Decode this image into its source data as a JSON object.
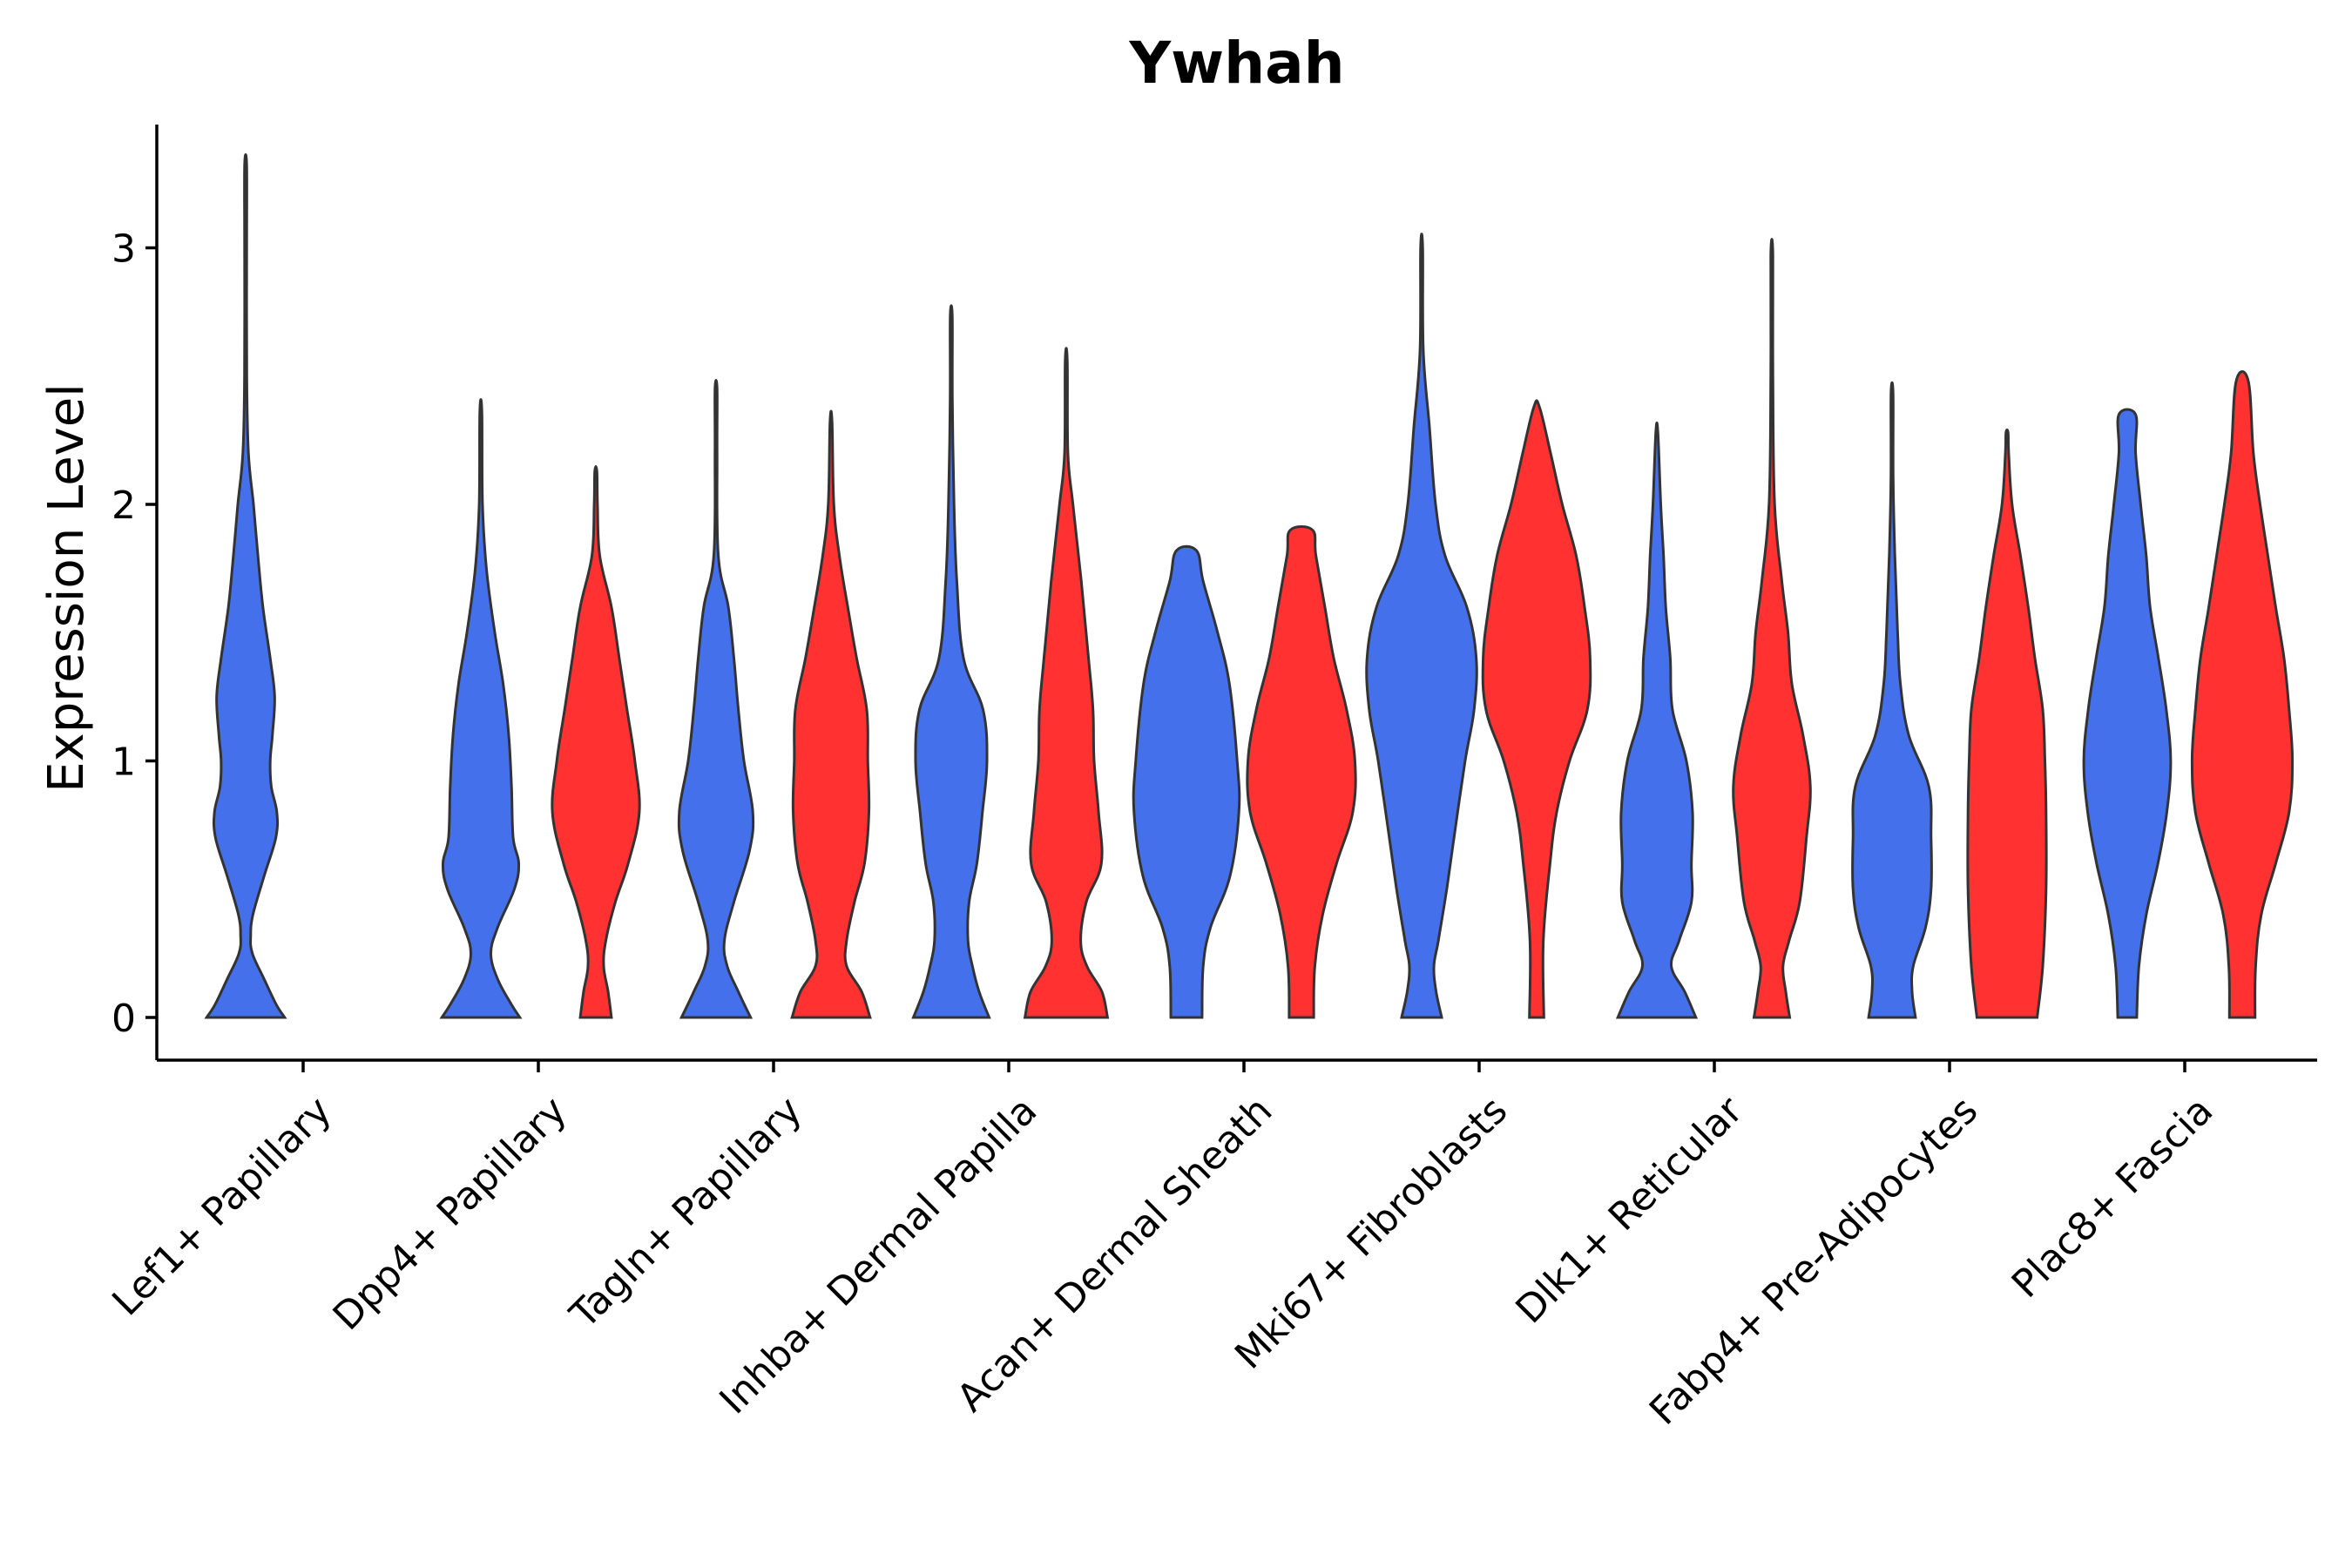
{
  "chart_data": {
    "type": "violin",
    "title": "Ywhah",
    "xlabel": "",
    "ylabel": "Expression Level",
    "ylim": [
      -0.17,
      3.5
    ],
    "yticks": [
      0,
      1,
      2,
      3
    ],
    "colors": {
      "group_a": "#4470EB",
      "group_b": "#FF3131"
    },
    "categories": [
      "Lef1+ Papillary",
      "Dpp4+ Papillary",
      "Tagln+ Papillary",
      "Inhba+ Dermal Papilla",
      "Acan+ Dermal Sheath",
      "Mki67+ Fibroblasts",
      "Dlk1+ Reticular",
      "Fabp4+ Pre-Adipocytes",
      "Plac8+ Fascia"
    ],
    "violins": [
      {
        "category": "Lef1+ Papillary",
        "group": "group_a",
        "max": 3.32,
        "profile": [
          [
            0,
            0.7
          ],
          [
            0.05,
            0.55
          ],
          [
            0.15,
            0.33
          ],
          [
            0.25,
            0.12
          ],
          [
            0.32,
            0.09
          ],
          [
            0.4,
            0.13
          ],
          [
            0.55,
            0.33
          ],
          [
            0.7,
            0.54
          ],
          [
            0.8,
            0.56
          ],
          [
            0.9,
            0.46
          ],
          [
            1.0,
            0.44
          ],
          [
            1.1,
            0.48
          ],
          [
            1.25,
            0.52
          ],
          [
            1.4,
            0.44
          ],
          [
            1.6,
            0.31
          ],
          [
            1.8,
            0.22
          ],
          [
            2.0,
            0.14
          ],
          [
            2.2,
            0.05
          ],
          [
            2.5,
            0.02
          ],
          [
            3.0,
            0.01
          ],
          [
            3.32,
            0.0
          ]
        ]
      },
      {
        "category": "Dpp4+ Papillary",
        "group": "group_a",
        "max": 2.36,
        "profile": [
          [
            0,
            0.7
          ],
          [
            0.05,
            0.55
          ],
          [
            0.15,
            0.3
          ],
          [
            0.25,
            0.18
          ],
          [
            0.35,
            0.3
          ],
          [
            0.5,
            0.6
          ],
          [
            0.6,
            0.68
          ],
          [
            0.7,
            0.58
          ],
          [
            0.9,
            0.55
          ],
          [
            1.1,
            0.5
          ],
          [
            1.3,
            0.4
          ],
          [
            1.5,
            0.25
          ],
          [
            1.75,
            0.1
          ],
          [
            2.0,
            0.03
          ],
          [
            2.36,
            0.0
          ]
        ]
      },
      {
        "category": "Dpp4+ Papillary",
        "group": "group_b",
        "max": 2.13,
        "profile": [
          [
            0,
            0.28
          ],
          [
            0.1,
            0.22
          ],
          [
            0.2,
            0.14
          ],
          [
            0.3,
            0.18
          ],
          [
            0.45,
            0.35
          ],
          [
            0.6,
            0.58
          ],
          [
            0.8,
            0.78
          ],
          [
            1.0,
            0.7
          ],
          [
            1.2,
            0.56
          ],
          [
            1.4,
            0.42
          ],
          [
            1.6,
            0.28
          ],
          [
            1.8,
            0.07
          ],
          [
            2.0,
            0.03
          ],
          [
            2.13,
            0.0
          ]
        ]
      },
      {
        "category": "Tagln+ Papillary",
        "group": "group_a",
        "max": 2.45,
        "profile": [
          [
            0,
            0.62
          ],
          [
            0.1,
            0.4
          ],
          [
            0.2,
            0.2
          ],
          [
            0.3,
            0.15
          ],
          [
            0.45,
            0.32
          ],
          [
            0.65,
            0.6
          ],
          [
            0.8,
            0.66
          ],
          [
            1.0,
            0.5
          ],
          [
            1.2,
            0.4
          ],
          [
            1.4,
            0.32
          ],
          [
            1.6,
            0.22
          ],
          [
            1.8,
            0.04
          ],
          [
            2.2,
            0.01
          ],
          [
            2.45,
            0.0
          ]
        ]
      },
      {
        "category": "Tagln+ Papillary",
        "group": "group_b",
        "max": 2.32,
        "profile": [
          [
            0,
            0.7
          ],
          [
            0.1,
            0.55
          ],
          [
            0.2,
            0.28
          ],
          [
            0.3,
            0.28
          ],
          [
            0.45,
            0.42
          ],
          [
            0.6,
            0.6
          ],
          [
            0.8,
            0.68
          ],
          [
            1.0,
            0.66
          ],
          [
            1.2,
            0.64
          ],
          [
            1.4,
            0.46
          ],
          [
            1.6,
            0.3
          ],
          [
            1.8,
            0.15
          ],
          [
            2.0,
            0.05
          ],
          [
            2.32,
            0.0
          ]
        ]
      },
      {
        "category": "Inhba+ Dermal Papilla",
        "group": "group_a",
        "max": 2.73,
        "profile": [
          [
            0,
            0.68
          ],
          [
            0.1,
            0.5
          ],
          [
            0.2,
            0.38
          ],
          [
            0.3,
            0.3
          ],
          [
            0.45,
            0.32
          ],
          [
            0.6,
            0.46
          ],
          [
            0.8,
            0.56
          ],
          [
            1.0,
            0.64
          ],
          [
            1.2,
            0.57
          ],
          [
            1.4,
            0.22
          ],
          [
            1.7,
            0.1
          ],
          [
            2.0,
            0.05
          ],
          [
            2.4,
            0.02
          ],
          [
            2.73,
            0.0
          ]
        ]
      },
      {
        "category": "Inhba+ Dermal Papilla",
        "group": "group_b",
        "max": 2.56,
        "profile": [
          [
            0,
            0.74
          ],
          [
            0.1,
            0.64
          ],
          [
            0.2,
            0.37
          ],
          [
            0.3,
            0.26
          ],
          [
            0.45,
            0.36
          ],
          [
            0.6,
            0.63
          ],
          [
            0.8,
            0.58
          ],
          [
            1.0,
            0.5
          ],
          [
            1.2,
            0.48
          ],
          [
            1.4,
            0.4
          ],
          [
            1.7,
            0.27
          ],
          [
            2.0,
            0.12
          ],
          [
            2.2,
            0.03
          ],
          [
            2.56,
            0.0
          ]
        ]
      },
      {
        "category": "Acan+ Dermal Sheath",
        "group": "group_a",
        "max": 1.82,
        "profile": [
          [
            0,
            0.28
          ],
          [
            0.2,
            0.3
          ],
          [
            0.35,
            0.43
          ],
          [
            0.55,
            0.78
          ],
          [
            0.8,
            0.94
          ],
          [
            1.0,
            0.91
          ],
          [
            1.3,
            0.77
          ],
          [
            1.5,
            0.56
          ],
          [
            1.7,
            0.3
          ],
          [
            1.82,
            0.18
          ]
        ]
      },
      {
        "category": "Acan+ Dermal Sheath",
        "group": "group_b",
        "max": 1.9,
        "profile": [
          [
            0,
            0.22
          ],
          [
            0.2,
            0.24
          ],
          [
            0.4,
            0.38
          ],
          [
            0.6,
            0.63
          ],
          [
            0.8,
            0.92
          ],
          [
            1.0,
            0.96
          ],
          [
            1.2,
            0.81
          ],
          [
            1.4,
            0.58
          ],
          [
            1.6,
            0.42
          ],
          [
            1.8,
            0.26
          ],
          [
            1.9,
            0.2
          ]
        ]
      },
      {
        "category": "Mki67+ Fibroblasts",
        "group": "group_a",
        "max": 3.0,
        "profile": [
          [
            0,
            0.36
          ],
          [
            0.1,
            0.26
          ],
          [
            0.2,
            0.22
          ],
          [
            0.3,
            0.3
          ],
          [
            0.5,
            0.45
          ],
          [
            0.7,
            0.58
          ],
          [
            1.0,
            0.78
          ],
          [
            1.2,
            0.94
          ],
          [
            1.4,
            0.98
          ],
          [
            1.6,
            0.81
          ],
          [
            1.8,
            0.42
          ],
          [
            2.0,
            0.25
          ],
          [
            2.3,
            0.14
          ],
          [
            2.6,
            0.03
          ],
          [
            3.0,
            0.0
          ]
        ]
      },
      {
        "category": "Mki67+ Fibroblasts",
        "group": "group_b",
        "max": 2.38,
        "profile": [
          [
            0,
            0.13
          ],
          [
            0.3,
            0.12
          ],
          [
            0.6,
            0.24
          ],
          [
            0.8,
            0.36
          ],
          [
            1.0,
            0.59
          ],
          [
            1.2,
            0.91
          ],
          [
            1.4,
            0.96
          ],
          [
            1.6,
            0.86
          ],
          [
            1.8,
            0.71
          ],
          [
            2.0,
            0.46
          ],
          [
            2.2,
            0.25
          ],
          [
            2.38,
            0.05
          ]
        ]
      },
      {
        "category": "Dlk1+ Reticular",
        "group": "group_a",
        "max": 2.28,
        "profile": [
          [
            0,
            0.7
          ],
          [
            0.1,
            0.5
          ],
          [
            0.2,
            0.26
          ],
          [
            0.3,
            0.4
          ],
          [
            0.45,
            0.62
          ],
          [
            0.6,
            0.62
          ],
          [
            0.8,
            0.64
          ],
          [
            1.0,
            0.53
          ],
          [
            1.2,
            0.28
          ],
          [
            1.4,
            0.24
          ],
          [
            1.6,
            0.16
          ],
          [
            1.8,
            0.12
          ],
          [
            2.0,
            0.07
          ],
          [
            2.28,
            0.0
          ]
        ]
      },
      {
        "category": "Dlk1+ Reticular",
        "group": "group_b",
        "max": 2.97,
        "profile": [
          [
            0,
            0.32
          ],
          [
            0.1,
            0.25
          ],
          [
            0.2,
            0.2
          ],
          [
            0.3,
            0.31
          ],
          [
            0.45,
            0.5
          ],
          [
            0.7,
            0.62
          ],
          [
            0.9,
            0.69
          ],
          [
            1.1,
            0.56
          ],
          [
            1.3,
            0.36
          ],
          [
            1.5,
            0.29
          ],
          [
            1.7,
            0.18
          ],
          [
            2.0,
            0.05
          ],
          [
            2.5,
            0.01
          ],
          [
            2.97,
            0.0
          ]
        ]
      },
      {
        "category": "Fabp4+ Pre-Adipocytes",
        "group": "group_a",
        "max": 2.43,
        "profile": [
          [
            0,
            0.42
          ],
          [
            0.1,
            0.36
          ],
          [
            0.2,
            0.38
          ],
          [
            0.35,
            0.6
          ],
          [
            0.5,
            0.7
          ],
          [
            0.7,
            0.7
          ],
          [
            0.9,
            0.66
          ],
          [
            1.1,
            0.3
          ],
          [
            1.3,
            0.15
          ],
          [
            1.5,
            0.1
          ],
          [
            1.8,
            0.05
          ],
          [
            2.1,
            0.02
          ],
          [
            2.43,
            0.0
          ]
        ]
      },
      {
        "category": "Fabp4+ Pre-Adipocytes",
        "group": "group_b",
        "max": 2.28,
        "profile": [
          [
            0,
            0.54
          ],
          [
            0.2,
            0.64
          ],
          [
            0.5,
            0.7
          ],
          [
            0.8,
            0.7
          ],
          [
            1.0,
            0.68
          ],
          [
            1.2,
            0.64
          ],
          [
            1.4,
            0.5
          ],
          [
            1.6,
            0.38
          ],
          [
            1.8,
            0.24
          ],
          [
            2.0,
            0.09
          ],
          [
            2.2,
            0.03
          ],
          [
            2.28,
            0.0
          ]
        ]
      },
      {
        "category": "Plac8+ Fascia",
        "group": "group_a",
        "max": 2.35,
        "profile": [
          [
            0,
            0.17
          ],
          [
            0.2,
            0.21
          ],
          [
            0.4,
            0.34
          ],
          [
            0.6,
            0.55
          ],
          [
            0.8,
            0.71
          ],
          [
            1.0,
            0.78
          ],
          [
            1.2,
            0.7
          ],
          [
            1.4,
            0.56
          ],
          [
            1.6,
            0.41
          ],
          [
            1.8,
            0.34
          ],
          [
            2.0,
            0.24
          ],
          [
            2.2,
            0.15
          ],
          [
            2.35,
            0.15
          ]
        ]
      },
      {
        "category": "Plac8+ Fascia",
        "group": "group_b",
        "max": 2.48,
        "profile": [
          [
            0,
            0.23
          ],
          [
            0.2,
            0.24
          ],
          [
            0.4,
            0.34
          ],
          [
            0.6,
            0.6
          ],
          [
            0.8,
            0.84
          ],
          [
            1.0,
            0.9
          ],
          [
            1.2,
            0.84
          ],
          [
            1.4,
            0.75
          ],
          [
            1.6,
            0.6
          ],
          [
            1.8,
            0.46
          ],
          [
            2.0,
            0.32
          ],
          [
            2.2,
            0.2
          ],
          [
            2.48,
            0.11
          ]
        ]
      }
    ]
  }
}
